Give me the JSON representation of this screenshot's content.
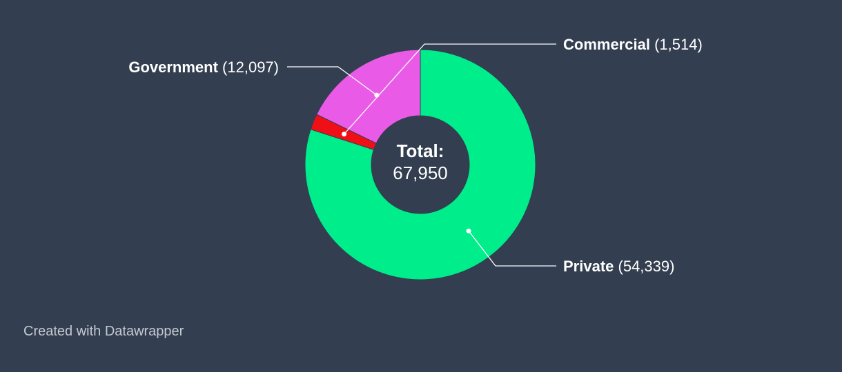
{
  "chart_data": {
    "type": "pie",
    "variant": "donut",
    "slices": [
      {
        "label": "Private",
        "value": 54339,
        "value_text": "(54,339)",
        "color": "#00ed8c"
      },
      {
        "label": "Commercial",
        "value": 1514,
        "value_text": "(1,514)",
        "color": "#ee0f17"
      },
      {
        "label": "Government",
        "value": 12097,
        "value_text": "(12,097)",
        "color": "#e95be6"
      }
    ],
    "center_title": "Total:",
    "center_value": "67,950"
  },
  "footer": {
    "credit": "Created with Datawrapper"
  },
  "colors": {
    "background": "#333f50",
    "text": "#ffffff",
    "footer_text": "#c4c9d1",
    "leader_line": "#ffffff"
  }
}
